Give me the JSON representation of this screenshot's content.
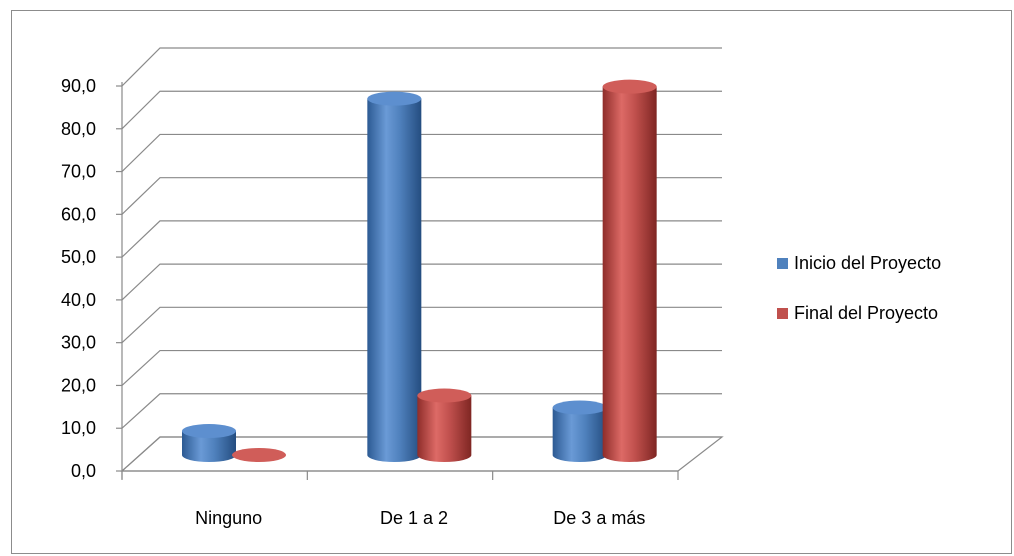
{
  "chart_data": {
    "type": "bar",
    "title": "",
    "categories": [
      "Ninguno",
      "De 1 a 2",
      "De 3 a más"
    ],
    "series": [
      {
        "name": "Inicio del Proyecto",
        "values": [
          5.6,
          83.3,
          11.1
        ],
        "color": "#4f81bd"
      },
      {
        "name": "Final del Proyecto",
        "values": [
          0.0,
          13.9,
          86.1
        ],
        "color": "#c0504d"
      }
    ],
    "y_ticks": [
      "0,0",
      "10,0",
      "20,0",
      "30,0",
      "40,0",
      "50,0",
      "60,0",
      "70,0",
      "80,0",
      "90,0"
    ],
    "ylim": [
      0,
      90
    ],
    "grid": true,
    "legend_position": "right",
    "bar_style": "3d-cylinder"
  }
}
